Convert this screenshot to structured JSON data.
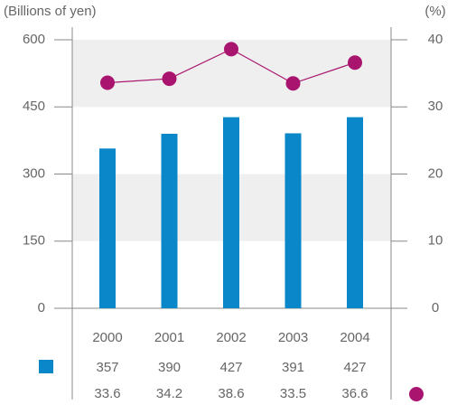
{
  "chart_data": {
    "type": "bar",
    "y_label": "(Billions of yen)",
    "y2_label": "(%)",
    "categories": [
      "2000",
      "2001",
      "2002",
      "2003",
      "2004"
    ],
    "series": [
      {
        "type": "bar",
        "color": "#0a87c8",
        "values": [
          357,
          390,
          427,
          391,
          427
        ]
      },
      {
        "type": "line",
        "color": "#a8146e",
        "axis": "y2",
        "values": [
          33.6,
          34.2,
          38.6,
          33.5,
          36.6
        ]
      }
    ],
    "ylim": [
      0,
      600
    ],
    "yticks": [
      0,
      150,
      300,
      450,
      600
    ],
    "y2lim": [
      0,
      40
    ],
    "y2ticks": [
      0,
      10,
      20,
      30,
      40
    ],
    "grid_bands": true
  }
}
